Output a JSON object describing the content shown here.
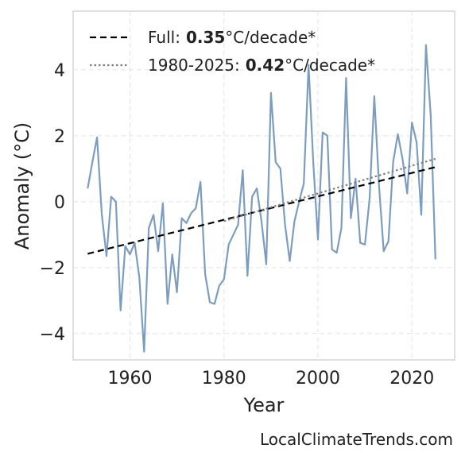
{
  "chart_data": {
    "type": "line",
    "xlabel": "Year",
    "ylabel": "Anomaly (°C)",
    "source": "LocalClimateTrends.com",
    "x": [
      1951,
      1952,
      1953,
      1954,
      1955,
      1956,
      1957,
      1958,
      1959,
      1960,
      1961,
      1962,
      1963,
      1964,
      1965,
      1966,
      1967,
      1968,
      1969,
      1970,
      1971,
      1972,
      1973,
      1974,
      1975,
      1976,
      1977,
      1978,
      1979,
      1980,
      1981,
      1982,
      1983,
      1984,
      1985,
      1986,
      1987,
      1988,
      1989,
      1990,
      1991,
      1992,
      1993,
      1994,
      1995,
      1996,
      1997,
      1998,
      1999,
      2000,
      2001,
      2002,
      2003,
      2004,
      2005,
      2006,
      2007,
      2008,
      2009,
      2010,
      2011,
      2012,
      2013,
      2014,
      2015,
      2016,
      2017,
      2018,
      2019,
      2020,
      2021,
      2022,
      2023,
      2024,
      2025
    ],
    "series": [
      {
        "color": "#7d9dbf",
        "values": [
          0.4,
          1.2,
          1.95,
          -0.4,
          -1.65,
          0.15,
          0.0,
          -3.3,
          -1.35,
          -1.6,
          -1.25,
          -2.3,
          -4.55,
          -0.8,
          -0.4,
          -1.5,
          -0.05,
          -3.1,
          -1.6,
          -2.75,
          -0.5,
          -0.65,
          -0.35,
          -0.2,
          0.6,
          -2.2,
          -3.05,
          -3.1,
          -2.55,
          -2.35,
          -1.3,
          -1.0,
          -0.7,
          0.95,
          -2.25,
          0.15,
          0.4,
          -0.6,
          -1.9,
          3.3,
          1.2,
          1.0,
          -0.7,
          -1.8,
          -0.6,
          0.0,
          0.55,
          4.15,
          1.2,
          -1.15,
          2.1,
          2.0,
          -1.45,
          -1.55,
          -0.8,
          3.75,
          -0.5,
          0.7,
          -1.25,
          -1.3,
          0.1,
          3.2,
          0.5,
          -1.5,
          -1.2,
          1.2,
          2.05,
          1.3,
          0.25,
          2.4,
          1.8,
          -0.4,
          4.75,
          2.6,
          -1.75
        ]
      }
    ],
    "trend_lines": [
      {
        "name": "Full:",
        "rate": 0.35,
        "unit": "°C/decade*",
        "style": "dashed",
        "color": "#000000",
        "x": [
          1951,
          2025
        ],
        "values": [
          -1.58,
          1.05
        ]
      },
      {
        "name": "1980-2025:",
        "rate": 0.42,
        "unit": "°C/decade*",
        "style": "dotted",
        "color": "#808080",
        "x": [
          1980,
          2025
        ],
        "values": [
          -0.59,
          1.3
        ]
      }
    ],
    "xlim": [
      1947.9,
      2029.1
    ],
    "ylim": [
      -4.8,
      5.78
    ],
    "xticks": [
      1960,
      1980,
      2000,
      2020
    ],
    "yticks": [
      {
        "value": -4,
        "label": "−4"
      },
      {
        "value": -2,
        "label": "−2"
      },
      0,
      2,
      4
    ],
    "grid": true,
    "legend": "upper left"
  }
}
